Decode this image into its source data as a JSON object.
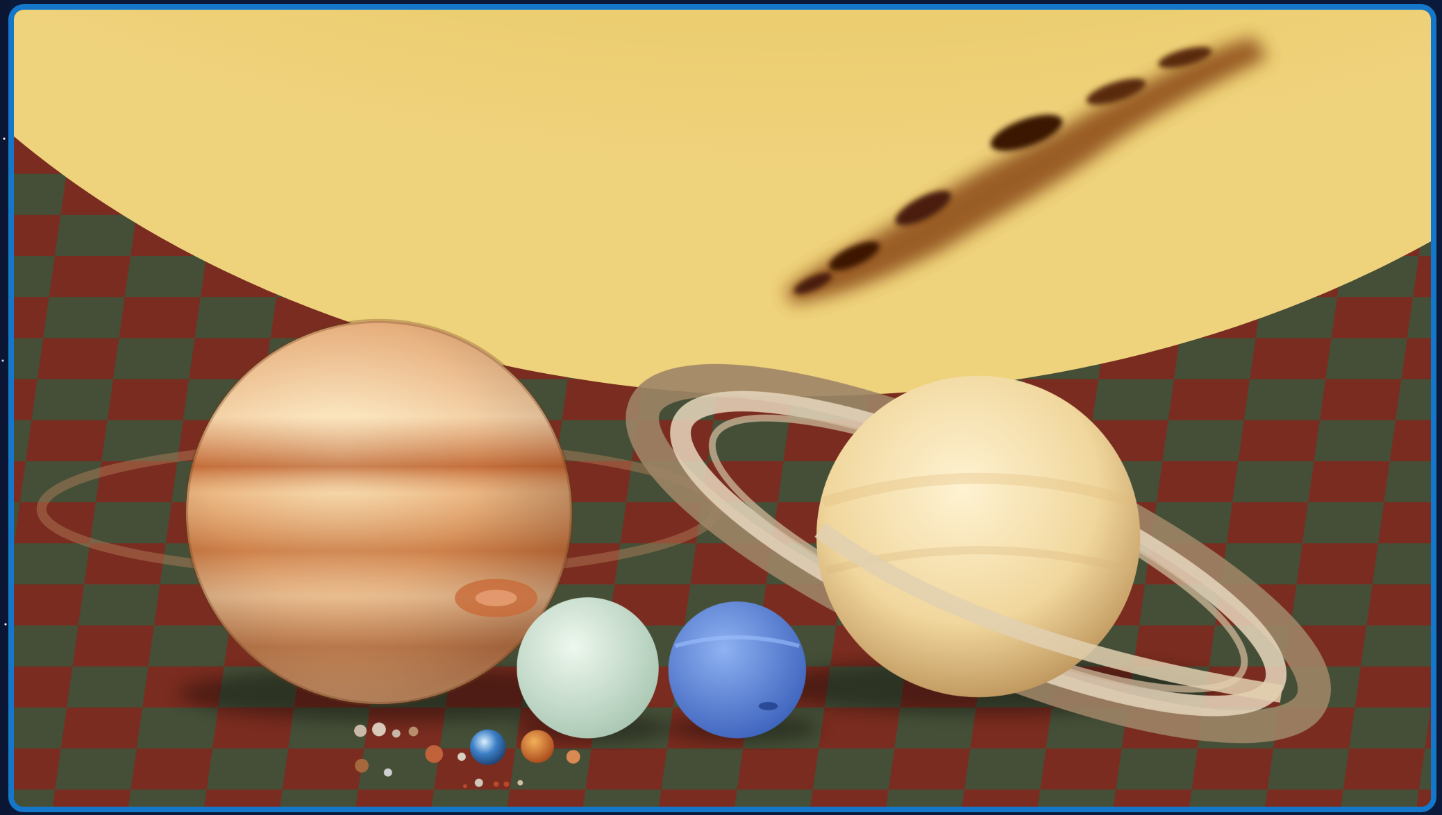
{
  "scene": {
    "subject": "sun-and-planets-size-comparison",
    "colors": {
      "frame_border": "#1477c9",
      "sun": "#e0bf47",
      "checker_red": "#8a3324",
      "checker_green": "#4f5a3f",
      "jupiter": "#e3a16a",
      "saturn": "#f1d79d",
      "uranus": "#cfe8d6",
      "neptune": "#5f8be0"
    }
  }
}
